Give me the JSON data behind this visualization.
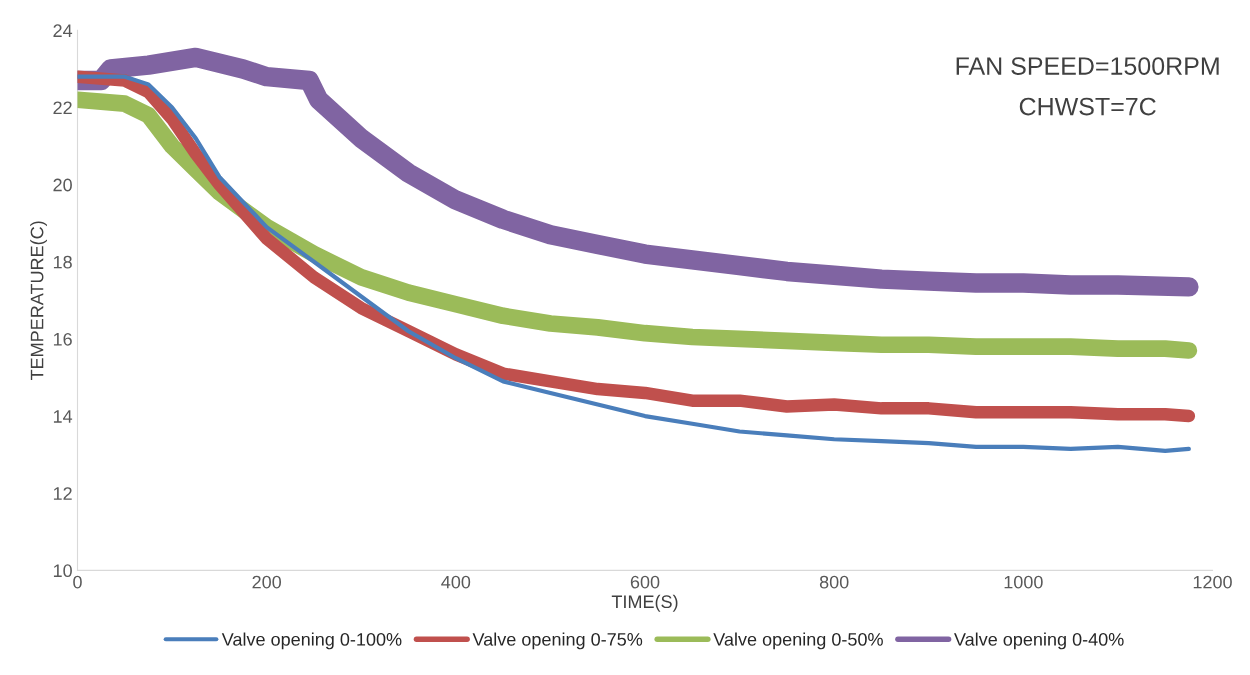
{
  "chart_data": {
    "type": "line",
    "xlabel": "TIME(S)",
    "ylabel": "TEMPERATURE(C)",
    "annotations": [
      "FAN SPEED=1500RPM",
      "CHWST=7C"
    ],
    "xlim": [
      0,
      1200
    ],
    "xticks": [
      0,
      200,
      400,
      600,
      800,
      1000,
      1200
    ],
    "ylim": [
      10,
      24
    ],
    "yticks": [
      10,
      12,
      14,
      16,
      18,
      20,
      22,
      24
    ],
    "grid": false,
    "legend": "bottom",
    "line_style": "solid",
    "marker": "none",
    "x": [
      0,
      50,
      75,
      100,
      125,
      150,
      200,
      250,
      300,
      350,
      400,
      450,
      500,
      550,
      600,
      650,
      700,
      750,
      800,
      850,
      900,
      950,
      1000,
      1050,
      1100,
      1150,
      1175
    ],
    "series": [
      {
        "name": "Valve opening 0-100%",
        "color": "#4a7ebb",
        "values": [
          22.8,
          22.8,
          22.6,
          22.0,
          21.2,
          20.2,
          18.9,
          18.0,
          17.1,
          16.2,
          15.5,
          14.9,
          14.6,
          14.3,
          14.0,
          13.8,
          13.6,
          13.5,
          13.4,
          13.35,
          13.3,
          13.2,
          13.2,
          13.15,
          13.2,
          13.1,
          13.15
        ]
      },
      {
        "name": "Valve opening 0-75%",
        "color": "#c0504d",
        "values": [
          22.8,
          22.7,
          22.4,
          21.7,
          20.8,
          20.0,
          18.6,
          17.6,
          16.8,
          16.2,
          15.6,
          15.1,
          14.9,
          14.7,
          14.6,
          14.4,
          14.4,
          14.25,
          14.3,
          14.2,
          14.2,
          14.1,
          14.1,
          14.1,
          14.05,
          14.05,
          14.0
        ]
      },
      {
        "name": "Valve opening 0-50%",
        "color": "#9bbb59",
        "values": [
          22.2,
          22.1,
          21.8,
          21.0,
          20.4,
          19.8,
          18.9,
          18.2,
          17.6,
          17.2,
          16.9,
          16.6,
          16.4,
          16.3,
          16.15,
          16.05,
          16.0,
          15.95,
          15.9,
          15.85,
          15.85,
          15.8,
          15.8,
          15.8,
          15.75,
          15.75,
          15.7
        ]
      },
      {
        "name": "Valve opening 0-40%",
        "color": "#8064a2",
        "x": [
          0,
          25,
          35,
          75,
          125,
          175,
          200,
          245,
          255,
          300,
          350,
          400,
          450,
          500,
          550,
          600,
          650,
          700,
          750,
          800,
          850,
          900,
          950,
          1000,
          1050,
          1100,
          1175
        ],
        "values": [
          22.7,
          22.7,
          23.0,
          23.1,
          23.3,
          23.0,
          22.8,
          22.7,
          22.2,
          21.2,
          20.3,
          19.6,
          19.1,
          18.7,
          18.45,
          18.2,
          18.05,
          17.9,
          17.75,
          17.65,
          17.55,
          17.5,
          17.45,
          17.45,
          17.4,
          17.4,
          17.35
        ]
      }
    ]
  }
}
